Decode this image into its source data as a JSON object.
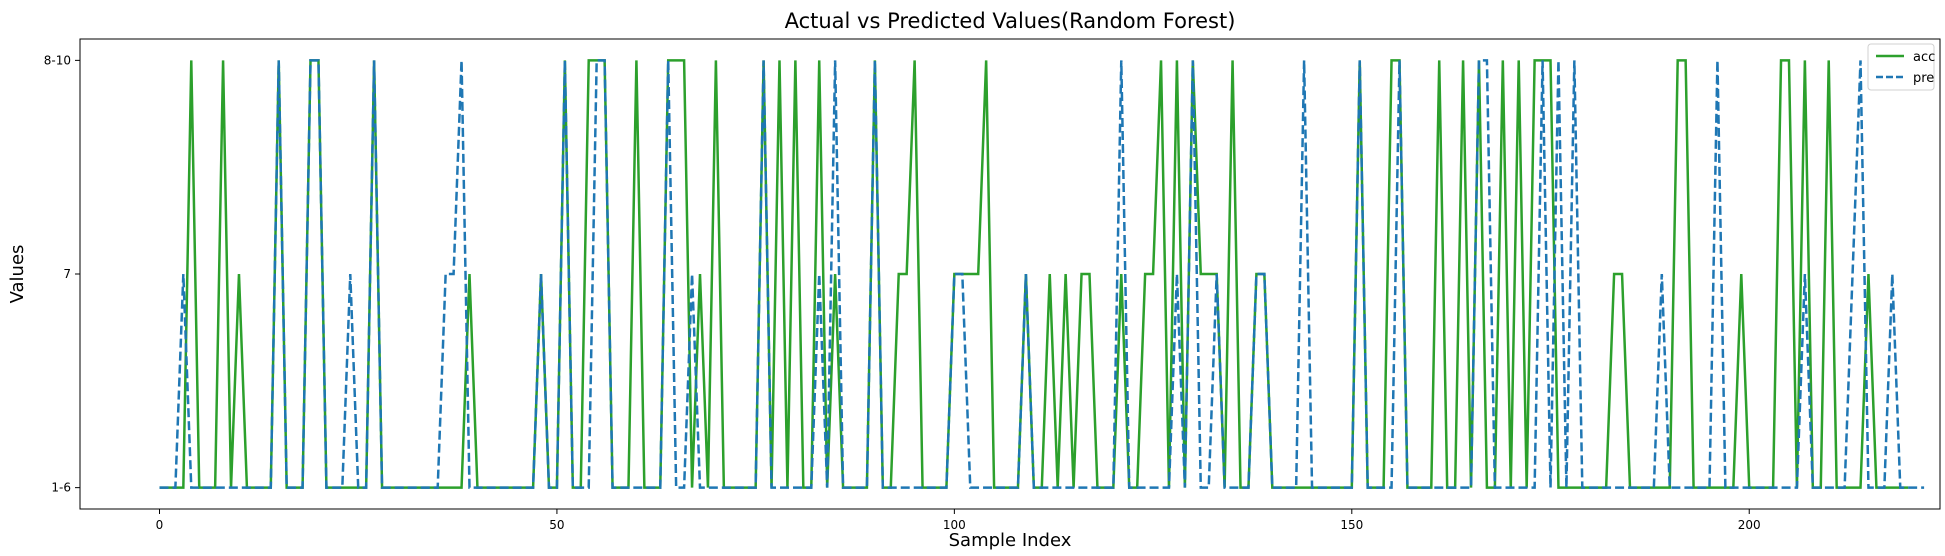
{
  "chart_data": {
    "type": "line",
    "title": "Actual vs Predicted Values(Random Forest)",
    "xlabel": "Sample Index",
    "ylabel": "Values",
    "xlim": [
      -10,
      224
    ],
    "ylim": [
      -0.1,
      2.1
    ],
    "xticks": [
      0,
      50,
      100,
      150,
      200
    ],
    "yticks": [
      {
        "value": 0,
        "label": "1-6"
      },
      {
        "value": 1,
        "label": "7"
      },
      {
        "value": 2,
        "label": "8-10"
      }
    ],
    "grid": false,
    "legend_position": "top-right",
    "series": [
      {
        "name": "acc",
        "color": "#2ca02c",
        "style": "solid",
        "values": [
          0,
          0,
          0,
          0,
          2,
          0,
          0,
          0,
          2,
          0,
          1,
          0,
          0,
          0,
          0,
          2,
          0,
          0,
          0,
          2,
          2,
          0,
          0,
          0,
          0,
          0,
          0,
          2,
          0,
          0,
          0,
          0,
          0,
          0,
          0,
          0,
          0,
          0,
          0,
          1,
          0,
          0,
          0,
          0,
          0,
          0,
          0,
          0,
          1,
          0,
          0,
          2,
          0,
          0,
          2,
          2,
          2,
          0,
          0,
          0,
          2,
          0,
          0,
          0,
          2,
          2,
          2,
          0,
          1,
          0,
          2,
          0,
          0,
          0,
          0,
          0,
          2,
          0,
          2,
          0,
          2,
          0,
          0,
          2,
          0,
          1,
          0,
          0,
          0,
          0,
          2,
          0,
          0,
          1,
          1,
          2,
          0,
          0,
          0,
          0,
          1,
          1,
          1,
          1,
          2,
          0,
          0,
          0,
          0,
          1,
          0,
          0,
          1,
          0,
          1,
          0,
          1,
          1,
          0,
          0,
          0,
          1,
          0,
          0,
          1,
          1,
          2,
          0,
          2,
          0,
          2,
          1,
          1,
          1,
          0,
          2,
          0,
          0,
          1,
          1,
          0,
          0,
          0,
          0,
          0,
          0,
          0,
          0,
          0,
          0,
          0,
          2,
          0,
          0,
          0,
          2,
          2,
          0,
          0,
          0,
          0,
          2,
          0,
          0,
          2,
          0,
          2,
          0,
          0,
          2,
          0,
          2,
          0,
          2,
          2,
          2,
          0,
          0,
          0,
          0,
          0,
          0,
          0,
          1,
          1,
          0,
          0,
          0,
          0,
          0,
          0,
          2,
          2,
          0,
          0,
          0,
          0,
          0,
          0,
          1,
          0,
          0,
          0,
          0,
          2,
          2,
          0,
          2,
          0,
          0,
          2,
          0,
          0,
          0,
          0,
          1,
          0,
          0,
          0,
          0,
          0
        ]
      },
      {
        "name": "pre",
        "color": "#1f77b4",
        "style": "dashed",
        "values": [
          0,
          0,
          0,
          1,
          0,
          0,
          0,
          0,
          0,
          0,
          0,
          0,
          0,
          0,
          0,
          2,
          0,
          0,
          0,
          2,
          2,
          0,
          0,
          0,
          1,
          0,
          0,
          2,
          0,
          0,
          0,
          0,
          0,
          0,
          0,
          0,
          1,
          1,
          2,
          0,
          0,
          0,
          0,
          0,
          0,
          0,
          0,
          0,
          1,
          0,
          0,
          2,
          0,
          0,
          0,
          2,
          2,
          0,
          0,
          0,
          0,
          0,
          0,
          0,
          2,
          0,
          0,
          1,
          0,
          0,
          0,
          0,
          0,
          0,
          0,
          0,
          2,
          0,
          0,
          0,
          0,
          0,
          0,
          1,
          0,
          2,
          0,
          0,
          0,
          0,
          2,
          0,
          0,
          0,
          0,
          0,
          0,
          0,
          0,
          0,
          1,
          1,
          0,
          0,
          0,
          0,
          0,
          0,
          0,
          1,
          0,
          0,
          0,
          0,
          0,
          0,
          0,
          0,
          0,
          0,
          0,
          2,
          0,
          0,
          0,
          0,
          0,
          0,
          1,
          0,
          2,
          0,
          0,
          1,
          0,
          0,
          0,
          0,
          1,
          1,
          0,
          0,
          0,
          0,
          2,
          0,
          0,
          0,
          0,
          0,
          0,
          2,
          0,
          0,
          0,
          0,
          2,
          0,
          0,
          0,
          0,
          0,
          0,
          0,
          0,
          0,
          2,
          2,
          0,
          0,
          0,
          0,
          0,
          0,
          2,
          0,
          2,
          0,
          2,
          0,
          0,
          0,
          0,
          0,
          0,
          0,
          0,
          0,
          0,
          1,
          0,
          0,
          0,
          0,
          0,
          0,
          2,
          0,
          0,
          0,
          0,
          0,
          0,
          0,
          0,
          0,
          0,
          1,
          0,
          0,
          0,
          0,
          0,
          1,
          2,
          0,
          0,
          0,
          1,
          0,
          0,
          0,
          0
        ]
      }
    ]
  }
}
